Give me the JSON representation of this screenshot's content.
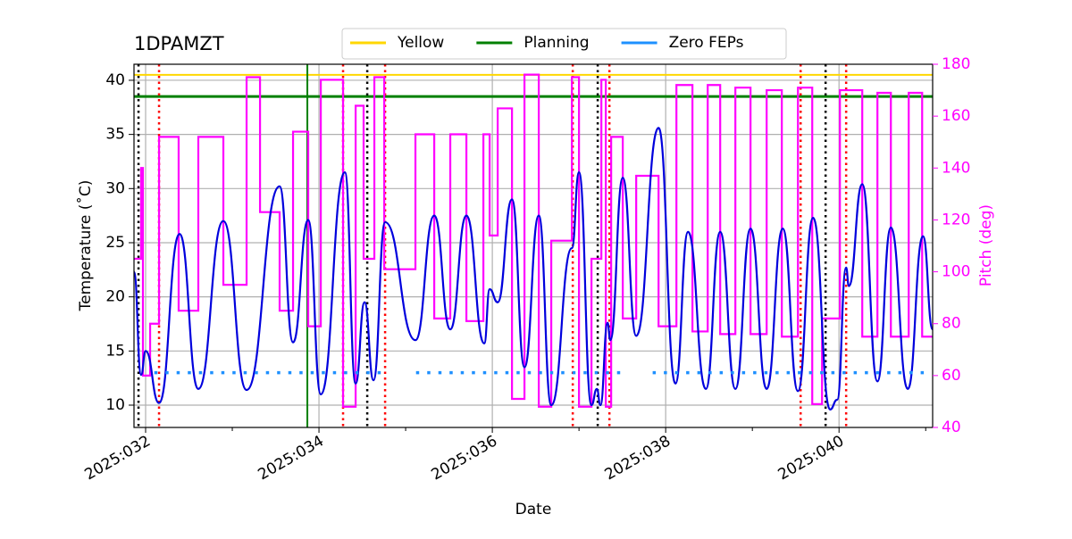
{
  "chart_data": {
    "type": "line",
    "title": "1DPAMZT",
    "xlabel": "Date",
    "ylabel": "Temperature (˚C)",
    "y2label": "Pitch (deg)",
    "y2color": "#ff00ff",
    "xlim": [
      31.866,
      41.08
    ],
    "ylim": [
      7.94,
      41.48
    ],
    "y2lim": [
      40,
      180
    ],
    "xticks": [
      {
        "value": 32,
        "label": "2025:032"
      },
      {
        "value": 34,
        "label": "2025:034"
      },
      {
        "value": 36,
        "label": "2025:036"
      },
      {
        "value": 38,
        "label": "2025:038"
      },
      {
        "value": 40,
        "label": "2025:040"
      }
    ],
    "xminorticks": [
      33,
      35,
      37,
      39,
      41
    ],
    "yticks": [
      10,
      15,
      20,
      25,
      30,
      35,
      40
    ],
    "y2ticks": [
      40,
      60,
      80,
      100,
      120,
      140,
      160,
      180
    ],
    "grid": true,
    "legend": "upper center",
    "hlines": [
      {
        "name": "Yellow",
        "color": "#ffd700",
        "value": 40.5,
        "width": 2
      },
      {
        "name": "Planning",
        "color": "#008000",
        "value": 38.5,
        "width": 3
      }
    ],
    "vlines": [
      {
        "color": "#008000",
        "value": 33.866,
        "style": "solid"
      },
      {
        "color": "#000000",
        "value": 31.918,
        "style": "dotted"
      },
      {
        "color": "#000000",
        "value": 34.557,
        "style": "dotted"
      },
      {
        "color": "#000000",
        "value": 37.216,
        "style": "dotted"
      },
      {
        "color": "#000000",
        "value": 39.845,
        "style": "dotted"
      },
      {
        "color": "#ff0000",
        "value": 32.155,
        "style": "dotted"
      },
      {
        "color": "#ff0000",
        "value": 34.278,
        "style": "dotted"
      },
      {
        "color": "#ff0000",
        "value": 34.763,
        "style": "dotted"
      },
      {
        "color": "#ff0000",
        "value": 36.928,
        "style": "dotted"
      },
      {
        "color": "#ff0000",
        "value": 37.351,
        "style": "dotted"
      },
      {
        "color": "#ff0000",
        "value": 39.557,
        "style": "dotted"
      },
      {
        "color": "#ff0000",
        "value": 40.082,
        "style": "dotted"
      }
    ],
    "series": [
      {
        "color": "#ff00ff",
        "axis": "y2",
        "step": "post",
        "x": [
          31.866,
          31.948,
          31.969,
          32.052,
          32.155,
          32.381,
          32.608,
          32.897,
          33.165,
          33.32,
          33.546,
          33.701,
          33.876,
          34.021,
          34.278,
          34.423,
          34.515,
          34.639,
          34.753,
          35.113,
          35.33,
          35.515,
          35.701,
          35.897,
          35.969,
          36.062,
          36.227,
          36.371,
          36.536,
          36.68,
          36.918,
          37.0,
          37.144,
          37.258,
          37.309,
          37.371,
          37.505,
          37.66,
          37.918,
          38.124,
          38.309,
          38.485,
          38.629,
          38.804,
          38.979,
          39.165,
          39.34,
          39.526,
          39.691,
          39.804,
          40.01,
          40.268,
          40.443,
          40.598,
          40.804,
          40.959,
          41.08
        ],
        "values": [
          105,
          140,
          60,
          80,
          152,
          85,
          152,
          95,
          175,
          123,
          85,
          154,
          79,
          174,
          48,
          164,
          105,
          175,
          101,
          153,
          82,
          153,
          81,
          153,
          114,
          163,
          51,
          176,
          48,
          112,
          175,
          48,
          105,
          174,
          48,
          152,
          82,
          137,
          79,
          172,
          77,
          172,
          76,
          171,
          76,
          170,
          75,
          171,
          49,
          82,
          170,
          75,
          169,
          75,
          169,
          75,
          75
        ]
      },
      {
        "color": "#0000dd",
        "smooth": true,
        "x": [
          31.866,
          31.948,
          32.0,
          32.155,
          32.392,
          32.608,
          32.897,
          33.165,
          33.546,
          33.701,
          33.876,
          34.021,
          34.299,
          34.423,
          34.526,
          34.629,
          34.763,
          35.113,
          35.33,
          35.515,
          35.701,
          35.907,
          35.969,
          36.062,
          36.227,
          36.371,
          36.536,
          36.68,
          36.918,
          37.0,
          37.144,
          37.206,
          37.247,
          37.33,
          37.361,
          37.505,
          37.66,
          37.918,
          38.113,
          38.258,
          38.464,
          38.629,
          38.804,
          38.979,
          39.165,
          39.351,
          39.526,
          39.701,
          39.897,
          39.979,
          40.082,
          40.113,
          40.268,
          40.443,
          40.598,
          40.794,
          40.969,
          41.08
        ],
        "values": [
          22.3,
          12.8,
          15.0,
          10.2,
          25.8,
          11.5,
          27.0,
          11.4,
          30.2,
          15.8,
          27.1,
          11.0,
          31.5,
          12.0,
          19.5,
          12.3,
          26.9,
          16.0,
          27.5,
          17.0,
          27.5,
          15.7,
          20.7,
          19.5,
          29.0,
          13.5,
          27.5,
          10.0,
          24.5,
          31.5,
          10.0,
          11.5,
          10.0,
          17.6,
          16.0,
          31.0,
          16.4,
          35.6,
          12.0,
          26.0,
          11.5,
          26.0,
          11.5,
          26.3,
          11.5,
          26.3,
          11.3,
          27.3,
          9.6,
          10.5,
          22.7,
          21.0,
          30.4,
          12.2,
          26.4,
          11.5,
          25.6,
          17.0
        ]
      },
      {
        "name": "Zero FEPs",
        "color": "#1e90ff",
        "style": "dotted",
        "x": [
          32.1,
          34.8,
          34.8,
          35.12,
          37.5,
          37.5,
          37.85,
          41.0
        ],
        "values": [
          13,
          13,
          null,
          13,
          13,
          null,
          13,
          13
        ]
      }
    ]
  }
}
